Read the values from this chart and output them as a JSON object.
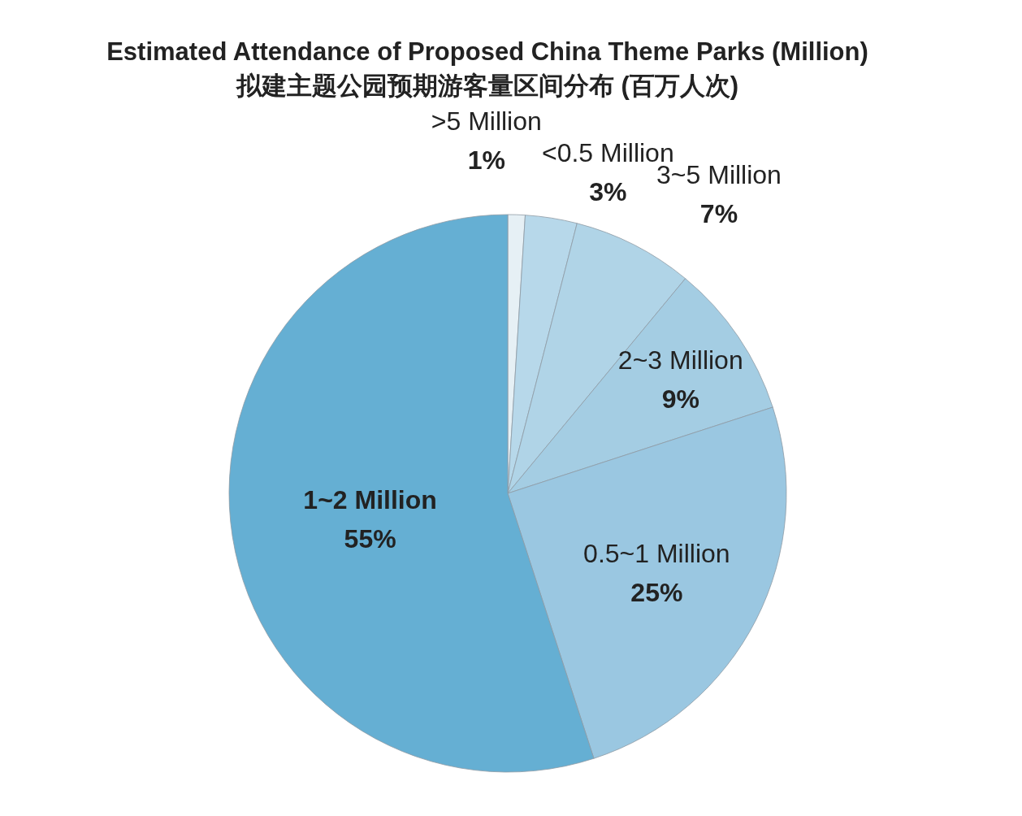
{
  "chart_data": {
    "type": "pie",
    "title": "Estimated Attendance of Proposed China Theme Parks (Million)",
    "subtitle": "拟建主题公园预期游客量区间分布 (百万人次)",
    "categories": [
      ">5 Million",
      "<0.5 Million",
      "3~5 Million",
      "2~3 Million",
      "0.5~1 Million",
      "1~2 Million"
    ],
    "values": [
      1,
      3,
      7,
      9,
      25,
      55
    ],
    "value_labels": [
      "1%",
      "3%",
      "7%",
      "9%",
      "25%",
      "55%"
    ],
    "colors": [
      "#e6f0f5",
      "#b7d8ea",
      "#b0d4e7",
      "#a4cde3",
      "#9ac7e1",
      "#65afd3"
    ]
  }
}
